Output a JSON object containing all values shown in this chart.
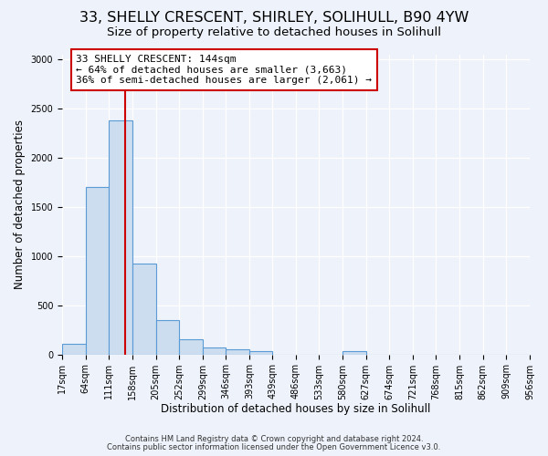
{
  "title1": "33, SHELLY CRESCENT, SHIRLEY, SOLIHULL, B90 4YW",
  "title2": "Size of property relative to detached houses in Solihull",
  "xlabel": "Distribution of detached houses by size in Solihull",
  "ylabel": "Number of detached properties",
  "footnote1": "Contains HM Land Registry data © Crown copyright and database right 2024.",
  "footnote2": "Contains public sector information licensed under the Open Government Licence v3.0.",
  "bar_edges": [
    17,
    64,
    111,
    158,
    205,
    252,
    299,
    346,
    393,
    439,
    486,
    533,
    580,
    627,
    674,
    721,
    768,
    815,
    862,
    909,
    956
  ],
  "bar_heights": [
    110,
    1700,
    2380,
    920,
    350,
    150,
    75,
    50,
    30,
    0,
    0,
    0,
    30,
    0,
    0,
    0,
    0,
    0,
    0,
    0
  ],
  "bar_color": "#ccddf0",
  "bar_edge_color": "#5b9bd5",
  "red_line_x": 144,
  "ylim": [
    0,
    3050
  ],
  "yticks": [
    0,
    500,
    1000,
    1500,
    2000,
    2500,
    3000
  ],
  "annotation_line1": "33 SHELLY CRESCENT: 144sqm",
  "annotation_line2": "← 64% of detached houses are smaller (3,663)",
  "annotation_line3": "36% of semi-detached houses are larger (2,061) →",
  "annotation_box_facecolor": "#ffffff",
  "annotation_box_edgecolor": "#cc0000",
  "background_color": "#eef2fa",
  "grid_color": "#ffffff",
  "title1_fontsize": 11.5,
  "title2_fontsize": 9.5,
  "ylabel_fontsize": 8.5,
  "xlabel_fontsize": 8.5,
  "tick_fontsize": 7,
  "annotation_fontsize": 8,
  "footnote_fontsize": 6
}
